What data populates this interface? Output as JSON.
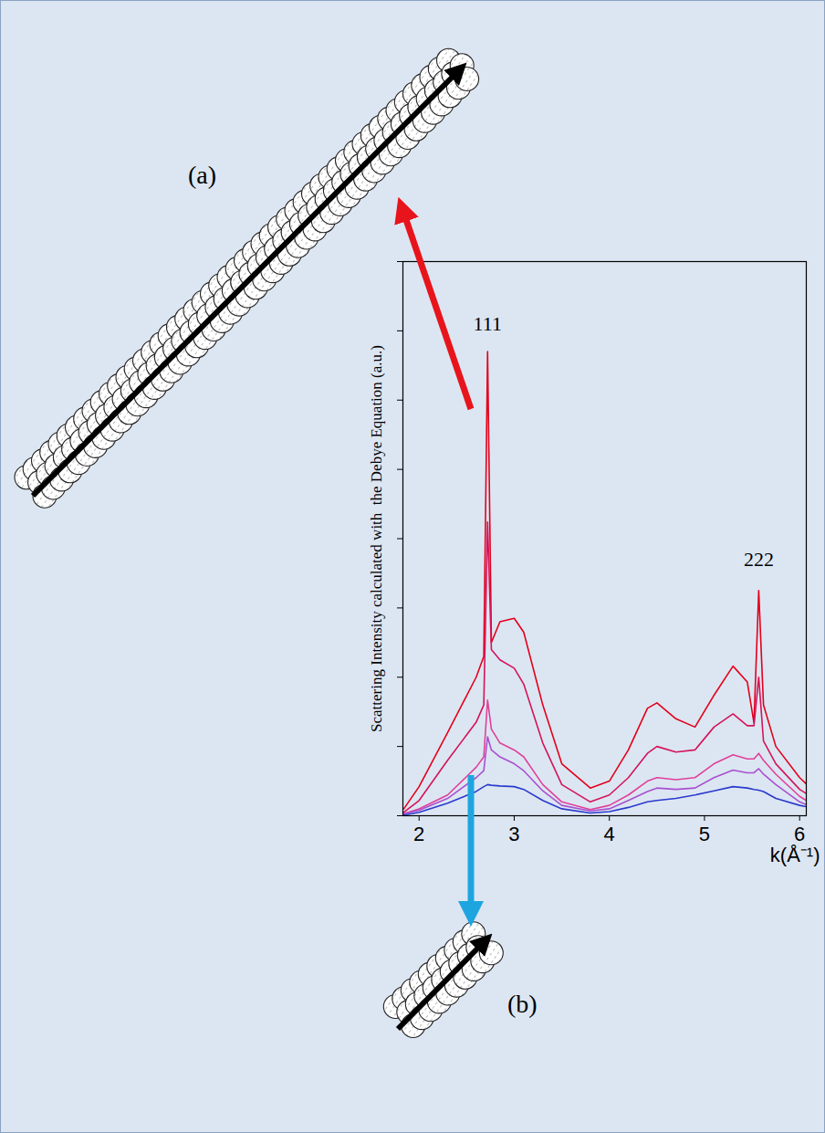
{
  "chart_data": {
    "type": "line",
    "y_label": "Scattering Intensity calculated with  the Debye Equation (a.u.)",
    "x_label": "k(Å⁻¹)",
    "x": [
      1.84,
      2.0,
      2.3,
      2.6,
      2.68,
      2.72,
      2.76,
      2.85,
      3.0,
      3.1,
      3.3,
      3.5,
      3.8,
      4.0,
      4.2,
      4.4,
      4.5,
      4.7,
      4.9,
      5.1,
      5.3,
      5.45,
      5.52,
      5.57,
      5.62,
      5.75,
      6.0,
      6.07
    ],
    "series": [
      {
        "color": "#e3001b",
        "values": [
          0.1,
          0.42,
          1.2,
          2.0,
          2.3,
          6.7,
          2.5,
          2.8,
          2.85,
          2.65,
          1.6,
          0.75,
          0.4,
          0.5,
          0.95,
          1.55,
          1.63,
          1.4,
          1.28,
          1.74,
          2.16,
          1.93,
          1.34,
          3.25,
          1.6,
          1.0,
          0.55,
          0.46
        ]
      },
      {
        "color": "#d4145a",
        "values": [
          0.05,
          0.22,
          0.8,
          1.35,
          1.6,
          4.24,
          2.4,
          2.25,
          2.13,
          1.9,
          1.05,
          0.45,
          0.2,
          0.3,
          0.55,
          0.9,
          1.0,
          0.92,
          0.95,
          1.28,
          1.47,
          1.3,
          1.3,
          2.0,
          1.08,
          0.75,
          0.38,
          0.32
        ]
      },
      {
        "color": "#e0409a",
        "values": [
          0.03,
          0.1,
          0.3,
          0.7,
          0.85,
          1.67,
          1.25,
          1.05,
          0.95,
          0.85,
          0.45,
          0.2,
          0.09,
          0.15,
          0.3,
          0.5,
          0.55,
          0.52,
          0.55,
          0.75,
          0.88,
          0.82,
          0.82,
          0.9,
          0.8,
          0.6,
          0.28,
          0.22
        ]
      },
      {
        "color": "#a850d0",
        "values": [
          0.03,
          0.08,
          0.25,
          0.55,
          0.65,
          1.14,
          0.95,
          0.85,
          0.75,
          0.65,
          0.36,
          0.15,
          0.07,
          0.1,
          0.22,
          0.35,
          0.4,
          0.38,
          0.4,
          0.55,
          0.66,
          0.62,
          0.62,
          0.68,
          0.6,
          0.45,
          0.2,
          0.16
        ]
      },
      {
        "color": "#2a3acd",
        "values": [
          0.01,
          0.05,
          0.18,
          0.35,
          0.42,
          0.45,
          0.44,
          0.43,
          0.42,
          0.38,
          0.22,
          0.1,
          0.04,
          0.06,
          0.12,
          0.2,
          0.22,
          0.25,
          0.3,
          0.36,
          0.42,
          0.4,
          0.38,
          0.37,
          0.35,
          0.25,
          0.15,
          0.13
        ]
      }
    ],
    "annotations": [
      {
        "text": "111",
        "x": 2.72,
        "y": 7.1
      },
      {
        "text": "222",
        "x": 5.57,
        "y": 3.7
      }
    ],
    "xlim": [
      1.83,
      6.07
    ],
    "xticks": [
      2,
      3,
      4,
      5,
      6
    ],
    "ylim": [
      0,
      8
    ],
    "yticks": [
      0,
      1,
      2,
      3,
      4,
      5,
      6,
      7,
      8
    ],
    "tick_labels": "x",
    "grid": false
  },
  "figure": {
    "labels": [
      "(a)",
      "(b)"
    ]
  }
}
